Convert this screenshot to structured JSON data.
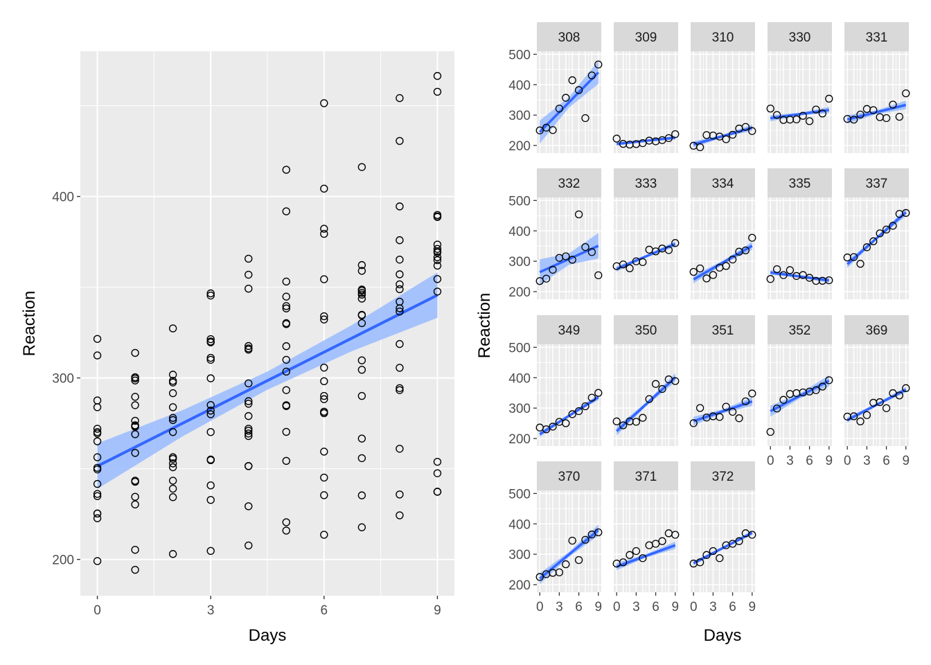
{
  "chart_data": [
    {
      "type": "scatter",
      "xlabel": "Days",
      "ylabel": "Reaction",
      "xticks": [
        0,
        3,
        6,
        9
      ],
      "yticks": [
        200,
        300,
        400
      ],
      "xlim": [
        -0.45,
        9.45
      ],
      "ylim": [
        180,
        480
      ],
      "grid": true,
      "trend": {
        "intercept": 251.4,
        "slope": 10.47,
        "ci": [
          12.5,
          7.2,
          5.0,
          7.2,
          12.5
        ]
      },
      "series": [
        {
          "points": [
            [
              0,
              249.6
            ],
            [
              0,
              222.7
            ],
            [
              0,
              199.1
            ],
            [
              0,
              321.5
            ],
            [
              0,
              287.6
            ],
            [
              0,
              234.9
            ],
            [
              0,
              283.9
            ],
            [
              0,
              265.1
            ],
            [
              0,
              241.6
            ],
            [
              0,
              312.4
            ],
            [
              0,
              236.1
            ],
            [
              0,
              256.3
            ],
            [
              0,
              270.2
            ],
            [
              0,
              225.3
            ],
            [
              0,
              269.4
            ],
            [
              0,
              272.0
            ],
            [
              0,
              225.3
            ],
            [
              0,
              250.5
            ],
            [
              1,
              258.7
            ],
            [
              1,
              205.3
            ],
            [
              1,
              194.3
            ],
            [
              1,
              300.4
            ],
            [
              1,
              285.0
            ],
            [
              1,
              242.8
            ],
            [
              1,
              289.6
            ],
            [
              1,
              276.4
            ],
            [
              1,
              273.9
            ],
            [
              1,
              313.8
            ],
            [
              1,
              230.3
            ],
            [
              1,
              243.4
            ],
            [
              1,
              298.6
            ],
            [
              1,
              234.5
            ],
            [
              1,
              273.5
            ],
            [
              1,
              273.1
            ],
            [
              1,
              299.7
            ],
            [
              1,
              269.0
            ],
            [
              2,
              250.8
            ],
            [
              2,
              203.0
            ],
            [
              2,
              234.3
            ],
            [
              2,
              283.9
            ],
            [
              2,
              301.8
            ],
            [
              2,
              255.4
            ],
            [
              2,
              276.8
            ],
            [
              2,
              243.4
            ],
            [
              2,
              270.2
            ],
            [
              2,
              252.9
            ],
            [
              2,
              291.6
            ],
            [
              2,
              256.3
            ],
            [
              2,
              298.4
            ],
            [
              2,
              239.0
            ],
            [
              2,
              297.5
            ],
            [
              2,
              256.3
            ],
            [
              2,
              278.0
            ],
            [
              2,
              327.3
            ],
            [
              3,
              321.4
            ],
            [
              3,
              204.7
            ],
            [
              3,
              232.8
            ],
            [
              3,
              285.1
            ],
            [
              3,
              320.1
            ],
            [
              3,
              255.0
            ],
            [
              3,
              240.8
            ],
            [
              3,
              254.7
            ],
            [
              3,
              282.0
            ],
            [
              3,
              311.1
            ],
            [
              3,
              346.6
            ],
            [
              3,
              345.4
            ],
            [
              3,
              255.0
            ],
            [
              3,
              310.0
            ],
            [
              3,
              299.8
            ],
            [
              3,
              280.0
            ],
            [
              3,
              270.2
            ],
            [
              3,
              319.6
            ],
            [
              4,
              356.9
            ],
            [
              4,
              207.7
            ],
            [
              4,
              229.3
            ],
            [
              4,
              285.8
            ],
            [
              4,
              316.3
            ],
            [
              4,
              268.0
            ],
            [
              4,
              279.0
            ],
            [
              4,
              317.6
            ],
            [
              4,
              269.4
            ],
            [
              4,
              251.5
            ],
            [
              4,
              365.7
            ],
            [
              4,
              287.2
            ],
            [
              4,
              270.9
            ],
            [
              4,
              251.4
            ],
            [
              4,
              349.2
            ],
            [
              4,
              272.0
            ],
            [
              4,
              297.0
            ],
            [
              4,
              315.6
            ],
            [
              5,
              414.7
            ],
            [
              5,
              215.9
            ],
            [
              5,
              220.5
            ],
            [
              5,
              285.0
            ],
            [
              5,
              293.3
            ],
            [
              5,
              329.7
            ],
            [
              5,
              391.8
            ],
            [
              5,
              339.6
            ],
            [
              5,
              284.5
            ],
            [
              5,
              353.1
            ],
            [
              5,
              303.5
            ],
            [
              5,
              270.3
            ],
            [
              5,
              338.3
            ],
            [
              5,
              254.3
            ],
            [
              5,
              317.5
            ],
            [
              5,
              344.8
            ],
            [
              5,
              310.0
            ],
            [
              5,
              330.2
            ],
            [
              6,
              382.2
            ],
            [
              6,
              213.6
            ],
            [
              6,
              235.4
            ],
            [
              6,
              280.6
            ],
            [
              6,
              290.1
            ],
            [
              6,
              379.4
            ],
            [
              6,
              298.2
            ],
            [
              6,
              305.7
            ],
            [
              6,
              332.2
            ],
            [
              6,
              281.4
            ],
            [
              6,
              404.3
            ],
            [
              6,
              259.4
            ],
            [
              6,
              288.3
            ],
            [
              6,
              354.4
            ],
            [
              6,
              245.1
            ],
            [
              6,
              280.7
            ],
            [
              6,
              451.4
            ],
            [
              6,
              334.0
            ],
            [
              7,
              290.1
            ],
            [
              7,
              217.7
            ],
            [
              7,
              255.8
            ],
            [
              7,
              348.7
            ],
            [
              7,
              334.5
            ],
            [
              7,
              362.2
            ],
            [
              7,
              334.8
            ],
            [
              7,
              309.7
            ],
            [
              7,
              416.2
            ],
            [
              7,
              304.5
            ],
            [
              7,
              266.6
            ],
            [
              7,
              346.9
            ],
            [
              7,
              348.1
            ],
            [
              7,
              235.3
            ],
            [
              7,
              343.7
            ],
            [
              7,
              359.0
            ],
            [
              7,
              345.9
            ],
            [
              7,
              330.2
            ],
            [
              8,
              430.6
            ],
            [
              8,
              224.3
            ],
            [
              8,
              261.0
            ],
            [
              8,
              293.3
            ],
            [
              8,
              294.4
            ],
            [
              8,
              336.6
            ],
            [
              8,
              394.5
            ],
            [
              8,
              375.9
            ],
            [
              8,
              365.2
            ],
            [
              8,
              318.7
            ],
            [
              8,
              357.1
            ],
            [
              8,
              305.6
            ],
            [
              8,
              348.9
            ],
            [
              8,
              342.0
            ],
            [
              8,
              235.8
            ],
            [
              8,
              338.4
            ],
            [
              8,
              454.2
            ],
            [
              8,
              351.6
            ],
            [
              9,
              466.4
            ],
            [
              9,
              237.3
            ],
            [
              9,
              247.5
            ],
            [
              9,
              347.6
            ],
            [
              9,
              389.0
            ],
            [
              9,
              371.1
            ],
            [
              9,
              373.5
            ],
            [
              9,
              354.5
            ],
            [
              9,
              369.1
            ],
            [
              9,
              361.9
            ],
            [
              9,
              253.8
            ],
            [
              9,
              388.7
            ],
            [
              9,
              237.3
            ],
            [
              9,
              366.5
            ],
            [
              9,
              369.8
            ],
            [
              9,
              457.7
            ],
            [
              9,
              364.9
            ],
            [
              9,
              389.8
            ]
          ]
        }
      ]
    },
    {
      "type": "scatter",
      "xlabel": "Days",
      "ylabel": "Reaction",
      "xticks": [
        0,
        3,
        6,
        9
      ],
      "yticks": [
        200,
        300,
        400,
        500
      ],
      "xlim": [
        -0.45,
        9.45
      ],
      "ylim": [
        175,
        510
      ],
      "grid": true,
      "panels": [
        {
          "id": "308",
          "a": 244.2,
          "b": 21.8,
          "ci": 38,
          "y": [
            249.6,
            258.7,
            250.8,
            321.4,
            356.9,
            414.7,
            382.2,
            290.1,
            430.6,
            466.4
          ]
        },
        {
          "id": "309",
          "a": 205.1,
          "b": 2.3,
          "ci": 6,
          "y": [
            222.7,
            205.3,
            203.0,
            204.7,
            207.7,
            215.9,
            213.6,
            217.7,
            224.3,
            237.3
          ]
        },
        {
          "id": "310",
          "a": 203.5,
          "b": 6.1,
          "ci": 10,
          "y": [
            199.1,
            194.3,
            234.3,
            232.8,
            229.3,
            220.5,
            235.4,
            255.8,
            261.0,
            247.5
          ]
        },
        {
          "id": "330",
          "a": 289.7,
          "b": 3.0,
          "ci": 10,
          "y": [
            321.5,
            300.4,
            283.9,
            285.1,
            285.8,
            297.6,
            280.2,
            318.3,
            305.3,
            354.0
          ]
        },
        {
          "id": "331",
          "a": 285.7,
          "b": 5.3,
          "ci": 14,
          "y": [
            287.6,
            285.0,
            301.8,
            320.1,
            316.3,
            293.3,
            290.1,
            334.5,
            294.4,
            371.6
          ]
        },
        {
          "id": "332",
          "a": 264.3,
          "b": 9.6,
          "ci": 42,
          "y": [
            234.9,
            242.8,
            272.0,
            311.1,
            316.3,
            305.0,
            454.2,
            346.7,
            330.2,
            253.9
          ]
        },
        {
          "id": "333",
          "a": 275.0,
          "b": 9.1,
          "ci": 9,
          "y": [
            283.9,
            289.6,
            276.8,
            299.8,
            297.2,
            338.1,
            332.6,
            341.8,
            336.8,
            360.0
          ]
        },
        {
          "id": "334",
          "a": 240.2,
          "b": 12.3,
          "ci": 13,
          "y": [
            265.1,
            276.4,
            243.4,
            254.7,
            279.0,
            284.5,
            305.7,
            331.5,
            335.7,
            377.2
          ]
        },
        {
          "id": "335",
          "a": 263.0,
          "b": -2.9,
          "ci": 8,
          "y": [
            241.6,
            273.9,
            254.5,
            270.8,
            251.5,
            254.6,
            245.5,
            235.3,
            235.8,
            237.3
          ]
        },
        {
          "id": "337",
          "a": 290.1,
          "b": 19.0,
          "ci": 12,
          "y": [
            312.4,
            313.8,
            291.6,
            346.1,
            365.7,
            391.8,
            404.3,
            416.7,
            455.9,
            458.9
          ]
        },
        {
          "id": "349",
          "a": 214.2,
          "b": 13.5,
          "ci": 9,
          "y": [
            236.1,
            230.3,
            239.0,
            254.7,
            250.3,
            280.0,
            290.1,
            306.1,
            334.3,
            350.0
          ]
        },
        {
          "id": "350",
          "a": 224.1,
          "b": 19.6,
          "ci": 14,
          "y": [
            256.3,
            243.4,
            256.3,
            255.0,
            268.0,
            329.7,
            379.4,
            362.9,
            394.5,
            389.0
          ]
        },
        {
          "id": "351",
          "a": 257.1,
          "b": 7.2,
          "ci": 14,
          "y": [
            250.5,
            300.4,
            269.0,
            273.1,
            270.9,
            304.6,
            287.7,
            266.6,
            322.2,
            348.1
          ]
        },
        {
          "id": "352",
          "a": 290.0,
          "b": 11.1,
          "ci": 18,
          "y": [
            221.7,
            298.6,
            327.3,
            346.6,
            349.2,
            351.6,
            354.4,
            359.0,
            370.8,
            391.8
          ]
        },
        {
          "id": "369",
          "a": 261.0,
          "b": 11.1,
          "ci": 9,
          "y": [
            272.0,
            273.1,
            256.3,
            277.0,
            317.6,
            319.6,
            299.8,
            349.2,
            341.7,
            365.7
          ]
        },
        {
          "id": "370",
          "a": 219.9,
          "b": 17.7,
          "ci": 18,
          "y": [
            225.3,
            234.5,
            238.9,
            240.5,
            267.1,
            344.8,
            281.0,
            347.6,
            365.2,
            372.2
          ]
        },
        {
          "id": "371",
          "a": 259.5,
          "b": 7.8,
          "ci": 12,
          "y": [
            269.4,
            273.5,
            297.6,
            310.6,
            287.2,
            329.6,
            334.5,
            343.2,
            369.1,
            364.1
          ]
        },
        {
          "id": "372",
          "a": 270.6,
          "b": 11.1,
          "ci": 7,
          "y": [
            269.4,
            273.5,
            297.6,
            310.6,
            287.2,
            329.6,
            334.5,
            343.2,
            369.1,
            364.1
          ]
        }
      ]
    }
  ]
}
